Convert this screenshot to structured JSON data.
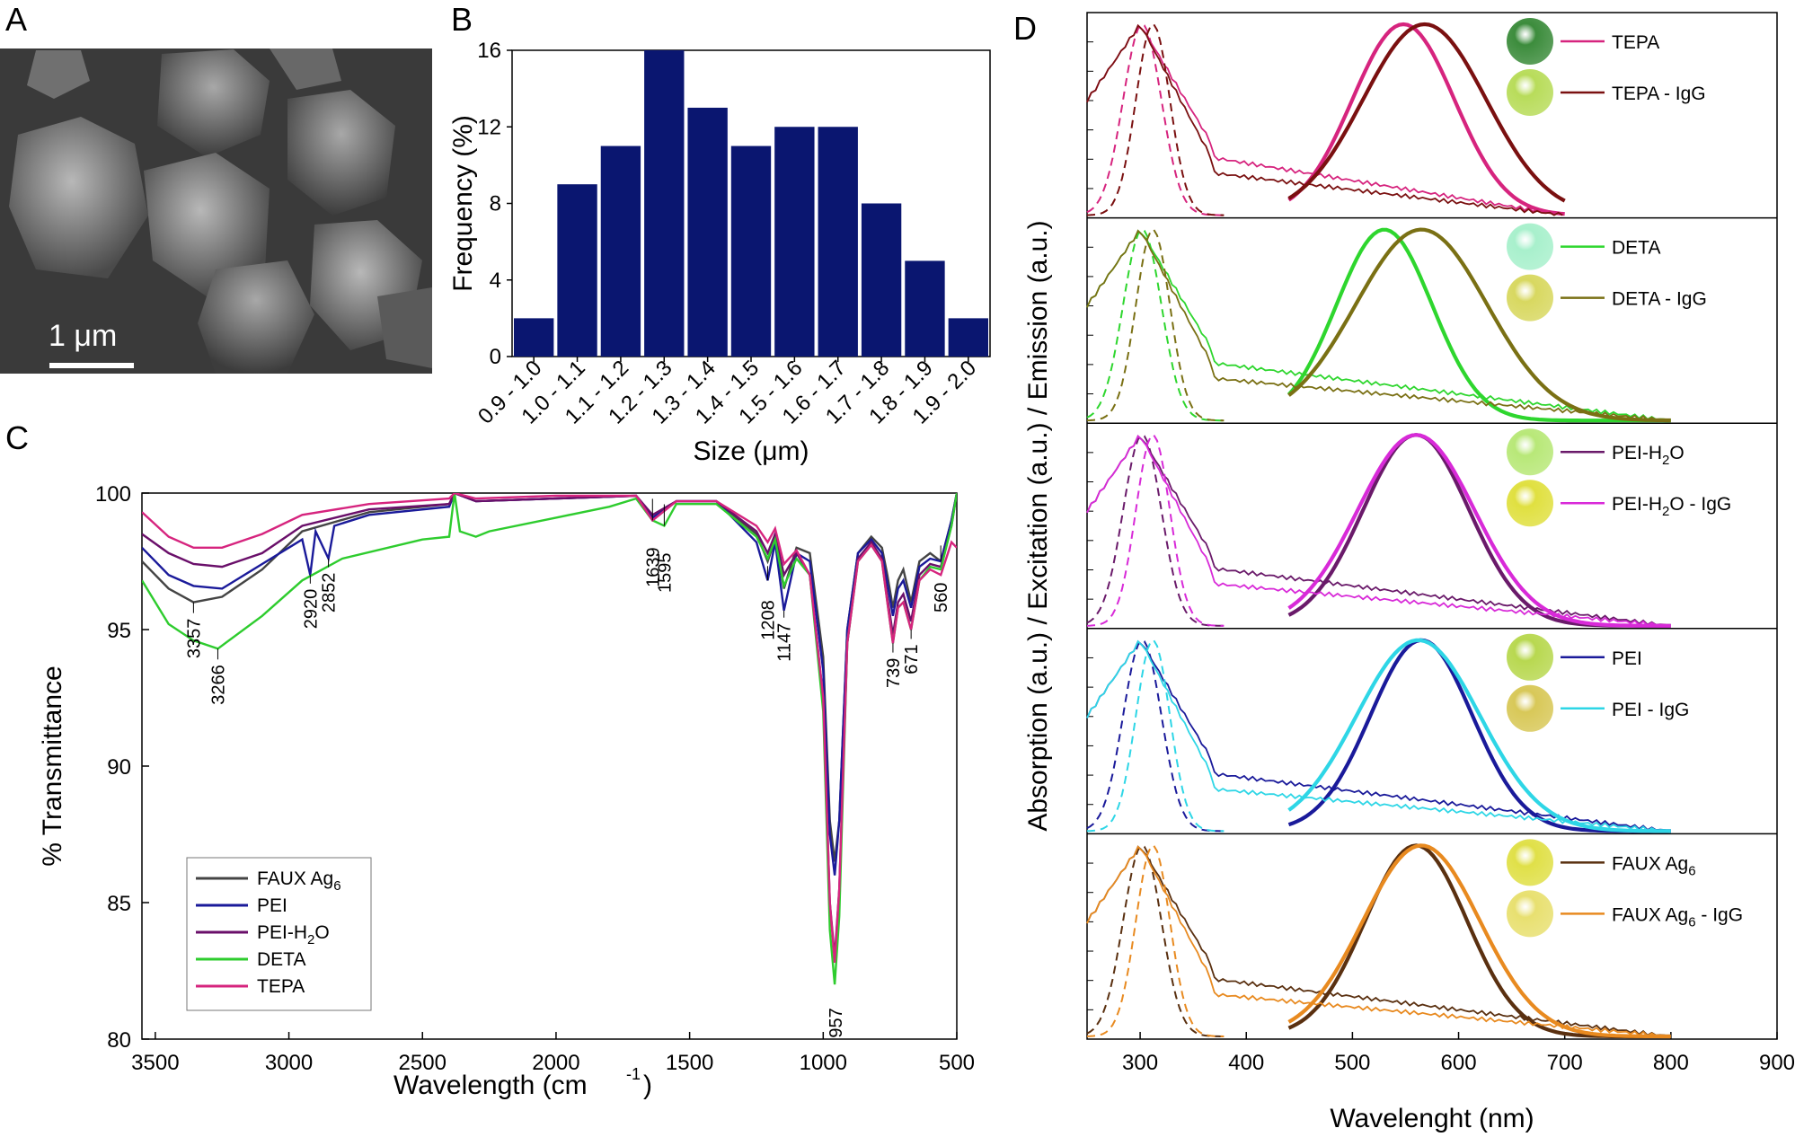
{
  "panels": {
    "A": {
      "letter": "A",
      "scale_bar": "1 μm"
    },
    "B": {
      "letter": "B"
    },
    "C": {
      "letter": "C"
    },
    "D": {
      "letter": "D"
    }
  },
  "chart_data": [
    {
      "id": "B",
      "type": "bar",
      "xlabel": "Size (μm)",
      "ylabel": "Frequency (%)",
      "categories": [
        "0.9 - 1.0",
        "1.0 - 1.1",
        "1.1 - 1.2",
        "1.2 - 1.3",
        "1.3 - 1.4",
        "1.4 - 1.5",
        "1.5 - 1.6",
        "1.6 - 1.7",
        "1.7 - 1.8",
        "1.8 - 1.9",
        "1.9 - 2.0"
      ],
      "values": [
        2,
        9,
        11,
        16,
        13,
        11,
        12,
        12,
        8,
        5,
        2
      ],
      "ylim": [
        0,
        16
      ],
      "yticks": [
        0,
        4,
        8,
        12,
        16
      ],
      "bar_color": "#0a1670"
    },
    {
      "id": "C",
      "type": "line",
      "xlabel": "Wavelength (cm-1)",
      "ylabel": "% Transmittance",
      "xlim": [
        3550,
        500
      ],
      "ylim": [
        80,
        100
      ],
      "xticks": [
        3500,
        3000,
        2500,
        2000,
        1500,
        1000,
        500
      ],
      "yticks": [
        80,
        85,
        90,
        95,
        100
      ],
      "annotations": [
        "3357",
        "3266",
        "2920",
        "2852",
        "1639",
        "1595",
        "1208",
        "1147",
        "957",
        "739",
        "671",
        "560"
      ],
      "series": [
        {
          "name": "FAUX Ag6",
          "color": "#444444",
          "x": [
            3550,
            3450,
            3357,
            3250,
            3100,
            2950,
            2700,
            2400,
            2380,
            2300,
            2000,
            1700,
            1639,
            1550,
            1400,
            1250,
            1208,
            1180,
            1147,
            1100,
            1050,
            1000,
            975,
            957,
            940,
            910,
            870,
            820,
            780,
            760,
            739,
            720,
            700,
            671,
            640,
            600,
            560,
            520,
            500
          ],
          "y": [
            97.5,
            96.5,
            96.0,
            96.2,
            97.2,
            98.6,
            99.3,
            99.6,
            100,
            99.7,
            99.8,
            99.9,
            99.0,
            99.7,
            99.7,
            98.5,
            97.5,
            98.3,
            96.5,
            98.0,
            97.8,
            94,
            88,
            86.5,
            88,
            95,
            97.8,
            98.4,
            98.0,
            97.0,
            95.8,
            96.8,
            97.2,
            96.0,
            97.5,
            97.8,
            97.5,
            99,
            100
          ]
        },
        {
          "name": "PEI",
          "color": "#1a1a9a",
          "x": [
            3550,
            3450,
            3357,
            3250,
            3100,
            2950,
            2920,
            2900,
            2852,
            2830,
            2700,
            2400,
            2380,
            2300,
            2000,
            1700,
            1639,
            1550,
            1400,
            1250,
            1208,
            1180,
            1147,
            1100,
            1050,
            1000,
            975,
            957,
            940,
            910,
            870,
            820,
            780,
            760,
            739,
            720,
            700,
            671,
            640,
            600,
            560,
            520,
            500
          ],
          "y": [
            98.0,
            97.0,
            96.6,
            96.5,
            97.4,
            98.3,
            97.0,
            98.6,
            97.6,
            98.8,
            99.2,
            99.5,
            100,
            99.7,
            99.8,
            99.9,
            99.1,
            99.7,
            99.7,
            98.2,
            96.8,
            98.2,
            95.7,
            97.8,
            97.5,
            93.5,
            87.5,
            86.0,
            88,
            95,
            97.8,
            98.3,
            97.8,
            96.7,
            95.5,
            96.5,
            96.8,
            95.8,
            97.3,
            97.6,
            97.5,
            99,
            100
          ]
        },
        {
          "name": "PEI-H2O",
          "color": "#6a0f6a",
          "x": [
            3550,
            3450,
            3357,
            3250,
            3100,
            2950,
            2700,
            2400,
            2380,
            2300,
            2000,
            1700,
            1639,
            1550,
            1400,
            1250,
            1208,
            1180,
            1147,
            1100,
            1050,
            1000,
            975,
            957,
            940,
            910,
            870,
            820,
            780,
            760,
            739,
            720,
            700,
            671,
            640,
            600,
            560,
            520,
            500
          ],
          "y": [
            98.5,
            97.8,
            97.4,
            97.3,
            97.8,
            98.8,
            99.4,
            99.6,
            100,
            99.7,
            99.8,
            99.9,
            99.2,
            99.7,
            99.7,
            98.6,
            97.8,
            98.5,
            97.0,
            97.8,
            97.0,
            92.5,
            85.0,
            83.0,
            85.5,
            94.5,
            97.6,
            98.2,
            97.6,
            96.2,
            94.8,
            96.0,
            96.3,
            95.3,
            97.0,
            97.4,
            97.3,
            98.8,
            100
          ]
        },
        {
          "name": "DETA",
          "color": "#2ecc2e",
          "x": [
            3550,
            3450,
            3357,
            3266,
            3100,
            2950,
            2800,
            2500,
            2400,
            2380,
            2360,
            2300,
            2250,
            2000,
            1800,
            1700,
            1639,
            1595,
            1550,
            1400,
            1250,
            1208,
            1180,
            1147,
            1100,
            1050,
            1000,
            975,
            957,
            940,
            910,
            870,
            820,
            780,
            760,
            739,
            720,
            700,
            671,
            640,
            600,
            560,
            520,
            500
          ],
          "y": [
            96.8,
            95.2,
            94.6,
            94.3,
            95.5,
            96.8,
            97.6,
            98.3,
            98.4,
            100,
            98.6,
            98.4,
            98.6,
            99.1,
            99.5,
            99.8,
            99.0,
            98.8,
            99.6,
            99.6,
            98.4,
            97.6,
            98.3,
            96.6,
            97.6,
            97.0,
            92,
            84.0,
            82.0,
            84.5,
            94.5,
            97.5,
            98.1,
            97.5,
            96.0,
            94.5,
            95.8,
            96.0,
            95.0,
            96.8,
            97.3,
            97.2,
            98.8,
            100
          ]
        },
        {
          "name": "TEPA",
          "color": "#d6247e",
          "x": [
            3550,
            3450,
            3357,
            3250,
            3100,
            2950,
            2700,
            2400,
            2380,
            2300,
            2000,
            1700,
            1639,
            1550,
            1400,
            1250,
            1208,
            1180,
            1147,
            1100,
            1050,
            1000,
            975,
            957,
            940,
            910,
            870,
            820,
            780,
            760,
            739,
            720,
            700,
            671,
            640,
            600,
            560,
            520,
            500
          ],
          "y": [
            99.3,
            98.4,
            98.0,
            98.0,
            98.5,
            99.2,
            99.6,
            99.8,
            100,
            99.8,
            99.9,
            99.9,
            99.0,
            99.7,
            99.7,
            98.8,
            98.2,
            98.7,
            97.4,
            97.9,
            97.0,
            92.5,
            85.0,
            82.8,
            85.5,
            94.5,
            97.5,
            98.1,
            97.5,
            96.0,
            94.5,
            95.8,
            96.0,
            95.0,
            96.8,
            97.2,
            97.0,
            98.2,
            98.0
          ]
        }
      ]
    },
    {
      "id": "D",
      "type": "line",
      "xlabel": "Wavelenght (nm)",
      "ylabel": "Absorption (a.u.) / Excitation (a.u.) / Emission (a.u.)",
      "xlim": [
        250,
        900
      ],
      "xticks": [
        300,
        400,
        500,
        600,
        700,
        800,
        900
      ],
      "subplots": [
        {
          "name": "TEPA group",
          "labels": [
            "TEPA",
            "TEPA - IgG"
          ],
          "colors": [
            "#d6247e",
            "#7a1010"
          ],
          "em_peaks": [
            548,
            568
          ],
          "em_width": [
            48,
            58
          ],
          "abs_end": [
            700,
            700
          ]
        },
        {
          "name": "DETA group",
          "labels": [
            "DETA",
            "DETA - IgG"
          ],
          "colors": [
            "#2ed62e",
            "#7a7014"
          ],
          "em_peaks": [
            530,
            565
          ],
          "em_width": [
            45,
            62
          ],
          "abs_end": [
            800,
            800
          ]
        },
        {
          "name": "PEI-H2O group",
          "labels": [
            "PEI-H2O",
            "PEI-H2O - IgG"
          ],
          "colors": [
            "#6a1a6a",
            "#d82ad8"
          ],
          "em_peaks": [
            560,
            560
          ],
          "em_width": [
            50,
            55
          ],
          "abs_end": [
            800,
            800
          ]
        },
        {
          "name": "PEI group",
          "labels": [
            "PEI",
            "PEI - IgG"
          ],
          "colors": [
            "#1a1a9a",
            "#2ed6e6"
          ],
          "em_peaks": [
            565,
            562
          ],
          "em_width": [
            48,
            58
          ],
          "abs_end": [
            800,
            800
          ]
        },
        {
          "name": "FAUX group",
          "labels": [
            "FAUX Ag6",
            "FAUX Ag6 - IgG"
          ],
          "colors": [
            "#5a3010",
            "#e88a20"
          ],
          "em_peaks": [
            560,
            565
          ],
          "em_width": [
            48,
            55
          ],
          "abs_end": [
            800,
            800
          ]
        }
      ],
      "sphere_colors": [
        [
          "#3c8c3c",
          "#b8dc5a"
        ],
        [
          "#a8f0cc",
          "#d8d860"
        ],
        [
          "#b8e878",
          "#e0e040"
        ],
        [
          "#b8d850",
          "#d8c858"
        ],
        [
          "#e0e048",
          "#e8e070"
        ]
      ]
    }
  ]
}
